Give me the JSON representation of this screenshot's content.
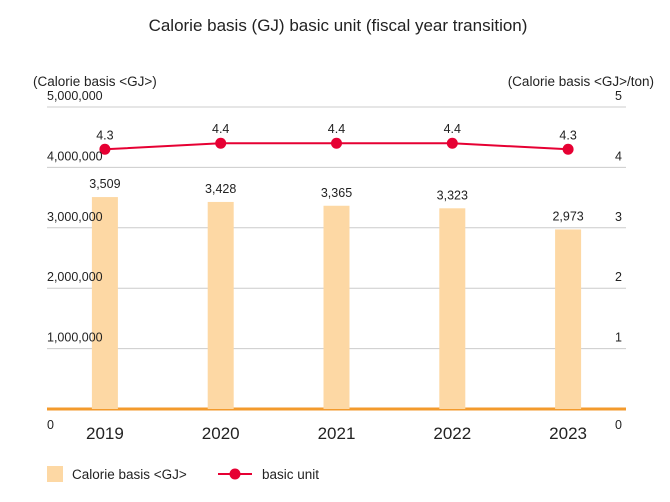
{
  "chart_data": {
    "type": "bar",
    "title": "Calorie basis (GJ) basic unit (fiscal year transition)",
    "ylabel_left": "(Calorie basis <GJ>)",
    "ylabel_right": "(Calorie basis <GJ>/ton)",
    "categories": [
      "2019",
      "2020",
      "2021",
      "2022",
      "2023"
    ],
    "series": [
      {
        "name": "Calorie basis <GJ>",
        "kind": "bar",
        "axis": "left",
        "values": [
          3509000,
          3428000,
          3365000,
          3323000,
          2973000
        ],
        "labels": [
          "3,509",
          "3,428",
          "3,365",
          "3,323",
          "2,973"
        ],
        "color": "#fdd8a4"
      },
      {
        "name": "basic unit",
        "kind": "line",
        "axis": "right",
        "values": [
          4.3,
          4.4,
          4.4,
          4.4,
          4.3
        ],
        "labels": [
          "4.3",
          "4.4",
          "4.4",
          "4.4",
          "4.3"
        ],
        "color": "#e60033"
      }
    ],
    "ylim_left": [
      0,
      5000000
    ],
    "ylim_right": [
      0,
      5
    ],
    "left_ticks": [
      "0",
      "1,000,000",
      "2,000,000",
      "3,000,000",
      "4,000,000",
      "5,000,000"
    ],
    "right_ticks": [
      "0",
      "1",
      "2",
      "3",
      "4",
      "5"
    ],
    "grid": true,
    "legend_position": "bottom-left",
    "baseline_color": "#f39a2c",
    "grid_color": "#cccccc"
  }
}
